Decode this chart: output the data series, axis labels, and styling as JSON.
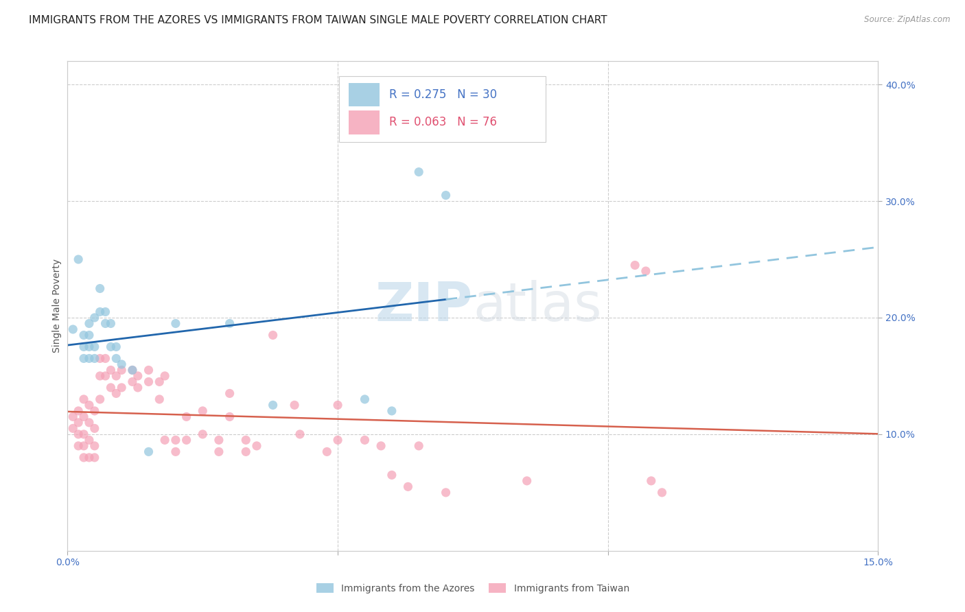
{
  "title": "IMMIGRANTS FROM THE AZORES VS IMMIGRANTS FROM TAIWAN SINGLE MALE POVERTY CORRELATION CHART",
  "source": "Source: ZipAtlas.com",
  "ylabel": "Single Male Poverty",
  "xlim": [
    0.0,
    0.15
  ],
  "ylim": [
    0.0,
    0.42
  ],
  "xticks": [
    0.0,
    0.05,
    0.1,
    0.15
  ],
  "xticklabels": [
    "0.0%",
    "",
    "",
    "15.0%"
  ],
  "yticks_right": [
    0.1,
    0.2,
    0.3,
    0.4
  ],
  "ytick_labels_right": [
    "10.0%",
    "20.0%",
    "30.0%",
    "40.0%"
  ],
  "legend_labels_bottom": [
    "Immigrants from the Azores",
    "Immigrants from Taiwan"
  ],
  "azores_color": "#92c5de",
  "taiwan_color": "#f4a0b5",
  "trendline_azores_solid_color": "#2166ac",
  "trendline_azores_dashed_color": "#92c5de",
  "trendline_taiwan_color": "#d6604d",
  "watermark_zip": "ZIP",
  "watermark_atlas": "atlas",
  "background_color": "#ffffff",
  "grid_color": "#cccccc",
  "title_fontsize": 11,
  "axis_label_fontsize": 10,
  "tick_fontsize": 10,
  "marker_size": 90,
  "azores_points": [
    [
      0.001,
      0.19
    ],
    [
      0.002,
      0.25
    ],
    [
      0.003,
      0.185
    ],
    [
      0.003,
      0.175
    ],
    [
      0.003,
      0.165
    ],
    [
      0.004,
      0.195
    ],
    [
      0.004,
      0.185
    ],
    [
      0.004,
      0.175
    ],
    [
      0.004,
      0.165
    ],
    [
      0.005,
      0.2
    ],
    [
      0.005,
      0.175
    ],
    [
      0.005,
      0.165
    ],
    [
      0.006,
      0.225
    ],
    [
      0.006,
      0.205
    ],
    [
      0.007,
      0.205
    ],
    [
      0.007,
      0.195
    ],
    [
      0.008,
      0.195
    ],
    [
      0.008,
      0.175
    ],
    [
      0.009,
      0.175
    ],
    [
      0.009,
      0.165
    ],
    [
      0.01,
      0.16
    ],
    [
      0.012,
      0.155
    ],
    [
      0.015,
      0.085
    ],
    [
      0.02,
      0.195
    ],
    [
      0.03,
      0.195
    ],
    [
      0.038,
      0.125
    ],
    [
      0.055,
      0.13
    ],
    [
      0.06,
      0.12
    ],
    [
      0.065,
      0.325
    ],
    [
      0.07,
      0.305
    ]
  ],
  "taiwan_points": [
    [
      0.001,
      0.115
    ],
    [
      0.001,
      0.105
    ],
    [
      0.002,
      0.12
    ],
    [
      0.002,
      0.11
    ],
    [
      0.002,
      0.1
    ],
    [
      0.002,
      0.09
    ],
    [
      0.003,
      0.13
    ],
    [
      0.003,
      0.115
    ],
    [
      0.003,
      0.1
    ],
    [
      0.003,
      0.09
    ],
    [
      0.003,
      0.08
    ],
    [
      0.004,
      0.125
    ],
    [
      0.004,
      0.11
    ],
    [
      0.004,
      0.095
    ],
    [
      0.004,
      0.08
    ],
    [
      0.005,
      0.12
    ],
    [
      0.005,
      0.105
    ],
    [
      0.005,
      0.09
    ],
    [
      0.005,
      0.08
    ],
    [
      0.006,
      0.165
    ],
    [
      0.006,
      0.15
    ],
    [
      0.006,
      0.13
    ],
    [
      0.007,
      0.165
    ],
    [
      0.007,
      0.15
    ],
    [
      0.008,
      0.155
    ],
    [
      0.008,
      0.14
    ],
    [
      0.009,
      0.15
    ],
    [
      0.009,
      0.135
    ],
    [
      0.01,
      0.155
    ],
    [
      0.01,
      0.14
    ],
    [
      0.012,
      0.155
    ],
    [
      0.012,
      0.145
    ],
    [
      0.013,
      0.15
    ],
    [
      0.013,
      0.14
    ],
    [
      0.015,
      0.155
    ],
    [
      0.015,
      0.145
    ],
    [
      0.017,
      0.145
    ],
    [
      0.017,
      0.13
    ],
    [
      0.018,
      0.15
    ],
    [
      0.018,
      0.095
    ],
    [
      0.02,
      0.095
    ],
    [
      0.02,
      0.085
    ],
    [
      0.022,
      0.115
    ],
    [
      0.022,
      0.095
    ],
    [
      0.025,
      0.12
    ],
    [
      0.025,
      0.1
    ],
    [
      0.028,
      0.095
    ],
    [
      0.028,
      0.085
    ],
    [
      0.03,
      0.135
    ],
    [
      0.03,
      0.115
    ],
    [
      0.033,
      0.095
    ],
    [
      0.033,
      0.085
    ],
    [
      0.035,
      0.09
    ],
    [
      0.038,
      0.185
    ],
    [
      0.042,
      0.125
    ],
    [
      0.043,
      0.1
    ],
    [
      0.048,
      0.085
    ],
    [
      0.05,
      0.125
    ],
    [
      0.05,
      0.095
    ],
    [
      0.055,
      0.095
    ],
    [
      0.058,
      0.09
    ],
    [
      0.06,
      0.065
    ],
    [
      0.063,
      0.055
    ],
    [
      0.065,
      0.09
    ],
    [
      0.07,
      0.05
    ],
    [
      0.085,
      0.06
    ],
    [
      0.105,
      0.245
    ],
    [
      0.107,
      0.24
    ],
    [
      0.108,
      0.06
    ],
    [
      0.11,
      0.05
    ]
  ]
}
